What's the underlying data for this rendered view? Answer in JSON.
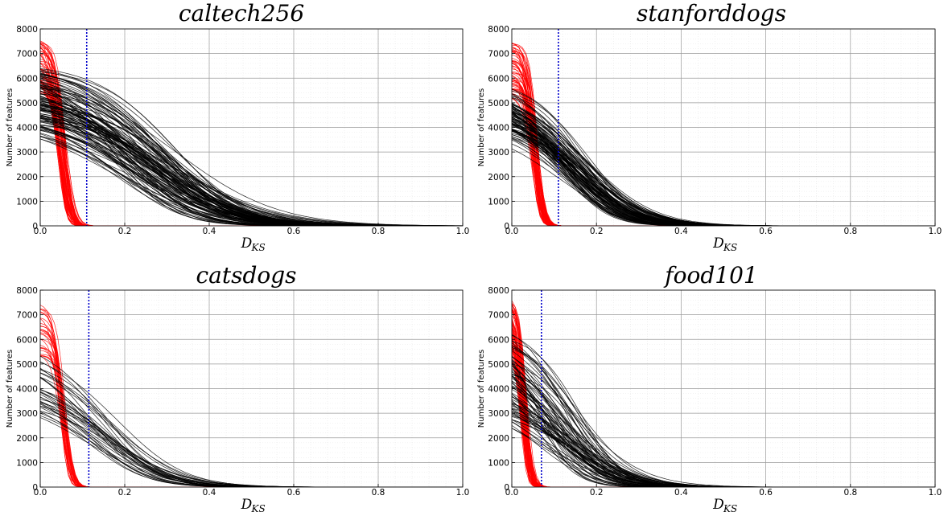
{
  "chart_data": [
    {
      "type": "line",
      "title": "caltech256",
      "xlabel": {
        "main": "D",
        "sub": "KS"
      },
      "ylabel": "Number of features",
      "xlim": [
        0.0,
        1.0
      ],
      "ylim": [
        0,
        8000
      ],
      "xticks": [
        "0.0",
        "0.2",
        "0.4",
        "0.6",
        "0.8",
        "1.0"
      ],
      "yticks": [
        "0",
        "1000",
        "2000",
        "3000",
        "4000",
        "5000",
        "6000",
        "7000",
        "8000"
      ],
      "threshold": 0.11,
      "grid": true,
      "colors": {
        "series_a": "#ff0000",
        "series_b": "#000000",
        "threshold": "#0000cc"
      },
      "series": [
        {
          "color": "#ff0000",
          "count": 60,
          "peak_range": [
            5400,
            7600
          ],
          "center_range": [
            0.04,
            0.06
          ],
          "width_range": [
            0.018,
            0.028
          ]
        },
        {
          "color": "#000000",
          "count": 120,
          "peak_range": [
            4200,
            6700
          ],
          "center_range": [
            0.16,
            0.32
          ],
          "width_range": [
            0.16,
            0.3
          ]
        }
      ]
    },
    {
      "type": "line",
      "title": "stanforddogs",
      "xlabel": {
        "main": "D",
        "sub": "KS"
      },
      "ylabel": "Number of features",
      "xlim": [
        0.0,
        1.0
      ],
      "ylim": [
        0,
        8000
      ],
      "xticks": [
        "0.0",
        "0.2",
        "0.4",
        "0.6",
        "0.8",
        "1.0"
      ],
      "yticks": [
        "0",
        "1000",
        "2000",
        "3000",
        "4000",
        "5000",
        "6000",
        "7000",
        "8000"
      ],
      "threshold": 0.11,
      "grid": true,
      "colors": {
        "series_a": "#ff0000",
        "series_b": "#000000",
        "threshold": "#0000cc"
      },
      "series": [
        {
          "color": "#ff0000",
          "count": 60,
          "peak_range": [
            5200,
            7500
          ],
          "center_range": [
            0.045,
            0.06
          ],
          "width_range": [
            0.018,
            0.026
          ]
        },
        {
          "color": "#000000",
          "count": 100,
          "peak_range": [
            4000,
            6000
          ],
          "center_range": [
            0.1,
            0.18
          ],
          "width_range": [
            0.12,
            0.2
          ]
        }
      ]
    },
    {
      "type": "line",
      "title": "catsdogs",
      "xlabel": {
        "main": "D",
        "sub": "KS"
      },
      "ylabel": "Number of features",
      "xlim": [
        0.0,
        1.0
      ],
      "ylim": [
        0,
        8000
      ],
      "xticks": [
        "0.0",
        "0.2",
        "0.4",
        "0.6",
        "0.8",
        "1.0"
      ],
      "yticks": [
        "0",
        "1000",
        "2000",
        "3000",
        "4000",
        "5000",
        "6000",
        "7000",
        "8000"
      ],
      "threshold": 0.115,
      "grid": true,
      "colors": {
        "series_a": "#ff0000",
        "series_b": "#000000",
        "threshold": "#0000cc"
      },
      "series": [
        {
          "color": "#ff0000",
          "count": 30,
          "peak_range": [
            5300,
            7500
          ],
          "center_range": [
            0.045,
            0.06
          ],
          "width_range": [
            0.018,
            0.026
          ]
        },
        {
          "color": "#000000",
          "count": 35,
          "peak_range": [
            3500,
            6100
          ],
          "center_range": [
            0.1,
            0.18
          ],
          "width_range": [
            0.14,
            0.22
          ]
        }
      ]
    },
    {
      "type": "line",
      "title": "food101",
      "xlabel": {
        "main": "D",
        "sub": "KS"
      },
      "ylabel": "Number of features",
      "xlim": [
        0.0,
        1.0
      ],
      "ylim": [
        0,
        8000
      ],
      "xticks": [
        "0.0",
        "0.2",
        "0.4",
        "0.6",
        "0.8",
        "1.0"
      ],
      "yticks": [
        "0",
        "1000",
        "2000",
        "3000",
        "4000",
        "5000",
        "6000",
        "7000",
        "8000"
      ],
      "threshold": 0.07,
      "grid": true,
      "colors": {
        "series_a": "#ff0000",
        "series_b": "#000000",
        "threshold": "#0000cc"
      },
      "series": [
        {
          "color": "#ff0000",
          "count": 70,
          "peak_range": [
            5300,
            7800
          ],
          "center_range": [
            0.02,
            0.035
          ],
          "width_range": [
            0.014,
            0.022
          ]
        },
        {
          "color": "#000000",
          "count": 80,
          "peak_range": [
            3300,
            7000
          ],
          "center_range": [
            0.05,
            0.16
          ],
          "width_range": [
            0.1,
            0.2
          ]
        }
      ]
    }
  ]
}
